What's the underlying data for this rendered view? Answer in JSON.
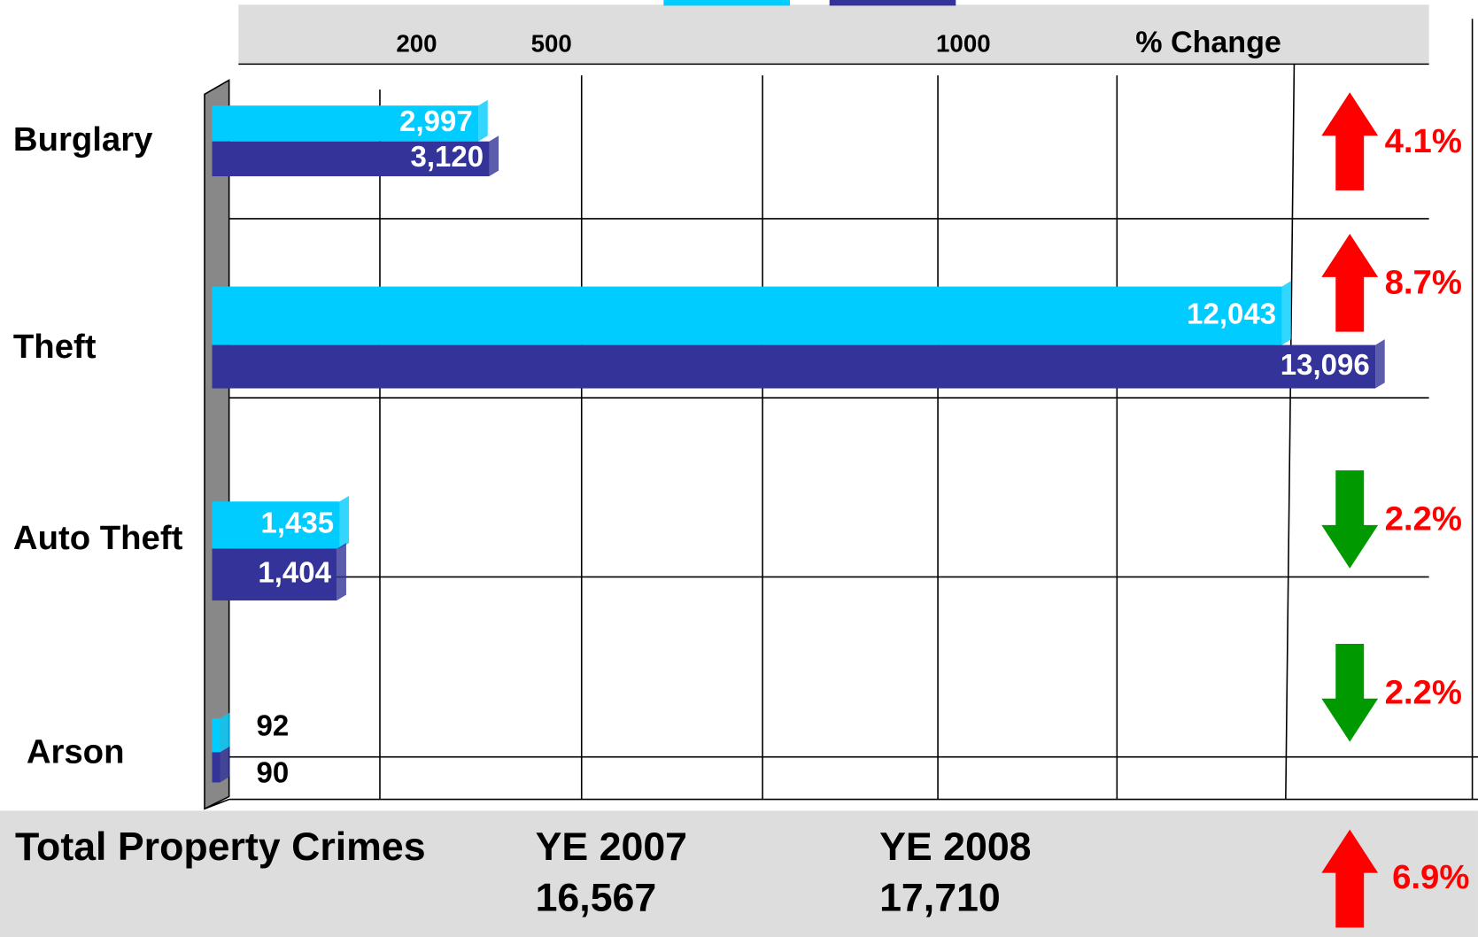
{
  "chart_data": {
    "type": "bar",
    "orientation": "horizontal",
    "categories": [
      "Burglary",
      "Theft",
      "Auto Theft",
      "Arson"
    ],
    "series": [
      {
        "name": "YE 2007",
        "color": "#00ccff",
        "values": [
          2997,
          12043,
          1435,
          92
        ],
        "value_labels": [
          "2,997",
          "12,043",
          "1,435",
          "92"
        ],
        "total": "16,567"
      },
      {
        "name": "YE 2008",
        "color": "#333399",
        "values": [
          3120,
          13096,
          1404,
          90
        ],
        "value_labels": [
          "3,120",
          "13,096",
          "1,404",
          "90"
        ],
        "total": "17,710"
      }
    ],
    "xlim": [
      0,
      13700
    ],
    "header_labels": [
      "200",
      "500",
      "1000"
    ],
    "change_header": "% Change",
    "changes": [
      4.1,
      8.7,
      2.2,
      2.2
    ],
    "change_labels": [
      "4.1%",
      "8.7%",
      "2.2%",
      "2.2%"
    ],
    "change_directions": [
      "up",
      "up",
      "down",
      "down"
    ],
    "total_title": "Total Property Crimes",
    "total_change": 6.9,
    "total_change_label": "6.9%",
    "total_change_direction": "up"
  }
}
